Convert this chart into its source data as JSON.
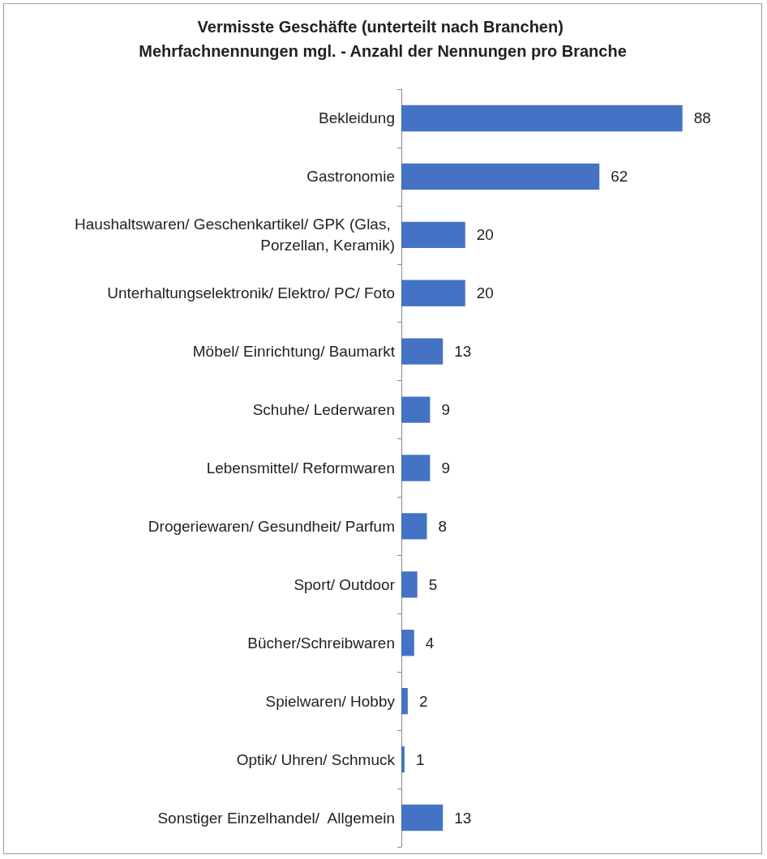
{
  "chart_data": {
    "type": "bar",
    "orientation": "horizontal",
    "title": "Vermisste Geschäfte (unterteilt nach Branchen) Mehrfachnennungen mgl. - Anzahl der Nennungen pro Branche",
    "categories": [
      "Bekleidung",
      "Gastronomie",
      "Haushaltswaren/ Geschenkartikel/ GPK (Glas, Porzellan, Keramik)",
      "Unterhaltungselektronik/ Elektro/ PC/ Foto",
      "Möbel/ Einrichtung/ Baumarkt",
      "Schuhe/ Lederwaren",
      "Lebensmittel/ Reformwaren",
      "Drogeriewaren/ Gesundheit/ Parfum",
      "Sport/ Outdoor",
      "Bücher/Schreibwaren",
      "Spielwaren/ Hobby",
      "Optik/ Uhren/ Schmuck",
      "Sonstiger Einzelhandel/  Allgemein"
    ],
    "values": [
      88,
      62,
      20,
      20,
      13,
      9,
      9,
      8,
      5,
      4,
      2,
      1,
      13
    ],
    "color": "#4472c4",
    "data_labels": true
  }
}
